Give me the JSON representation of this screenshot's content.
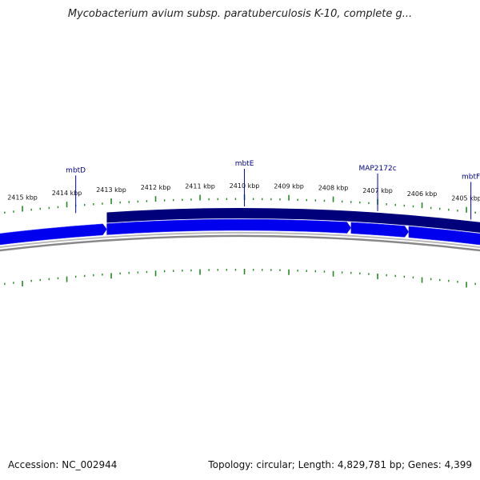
{
  "title": "Mycobacterium avium subsp. paratuberculosis K-10, complete g...",
  "accession": "Accession: NC_002944",
  "summary": "Topology: circular; Length: 4,829,781 bp; Genes: 4,399",
  "colors": {
    "forward_gene": "#0000ee",
    "reverse_gene": "#00007a",
    "backbone": "#888888",
    "tick": "#228b22",
    "label": "#00008b"
  },
  "ticks": [
    {
      "kbp": 2415,
      "label": "2415 kbp"
    },
    {
      "kbp": 2414,
      "label": "2414 kbp"
    },
    {
      "kbp": 2413,
      "label": "2413 kbp"
    },
    {
      "kbp": 2412,
      "label": "2412 kbp"
    },
    {
      "kbp": 2411,
      "label": "2411 kbp"
    },
    {
      "kbp": 2410,
      "label": "2410 kbp"
    },
    {
      "kbp": 2409,
      "label": "2409 kbp"
    },
    {
      "kbp": 2408,
      "label": "2408 kbp"
    },
    {
      "kbp": 2407,
      "label": "2407 kbp"
    },
    {
      "kbp": 2406,
      "label": "2406 kbp"
    },
    {
      "kbp": 2405,
      "label": "2405 kbp"
    }
  ],
  "genes": [
    {
      "name": "mbtD",
      "strand": "forward",
      "start_kbp": 2416.5,
      "end_kbp": 2413.1
    },
    {
      "name": "mbtE",
      "strand": "forward",
      "start_kbp": 2413.1,
      "end_kbp": 2407.6
    },
    {
      "name": "MAP2172c",
      "strand": "forward",
      "start_kbp": 2407.6,
      "end_kbp": 2406.3
    },
    {
      "name": "mbtF",
      "strand": "forward",
      "start_kbp": 2406.3,
      "end_kbp": 2403.8
    }
  ],
  "reverse_features": [
    {
      "strand": "reverse",
      "start_kbp": 2413.1,
      "end_kbp": 2403.8
    }
  ],
  "gene_labels": [
    {
      "name": "mbtD",
      "at_kbp": 2413.8
    },
    {
      "name": "mbtE",
      "at_kbp": 2410.0
    },
    {
      "name": "MAP2172c",
      "at_kbp": 2407.0
    },
    {
      "name": "mbtF",
      "at_kbp": 2404.9
    }
  ]
}
